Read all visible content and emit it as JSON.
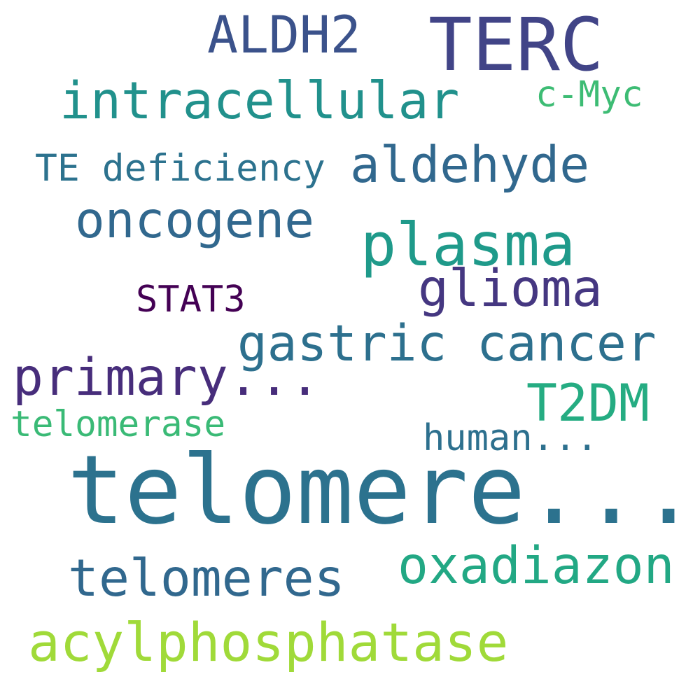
{
  "background_color": "#ffffff",
  "words": [
    {
      "id": "terc",
      "text": "TERC",
      "color": "#414487"
    },
    {
      "id": "aldh2",
      "text": "ALDH2",
      "color": "#3b528b"
    },
    {
      "id": "intracellular",
      "text": "intracellular",
      "color": "#21918c"
    },
    {
      "id": "c-myc",
      "text": "c-Myc",
      "color": "#3dbc74"
    },
    {
      "id": "te-deficiency",
      "text": "TE deficiency",
      "color": "#2c728e"
    },
    {
      "id": "aldehyde",
      "text": "aldehyde",
      "color": "#31688e"
    },
    {
      "id": "oncogene",
      "text": "oncogene",
      "color": "#31688e"
    },
    {
      "id": "plasma",
      "text": "plasma",
      "color": "#1f9a8a"
    },
    {
      "id": "glioma",
      "text": "glioma",
      "color": "#453781"
    },
    {
      "id": "stat3",
      "text": "STAT3",
      "color": "#440154"
    },
    {
      "id": "gastric-cancer",
      "text": "gastric cancer",
      "color": "#2d708e"
    },
    {
      "id": "primary",
      "text": "primary...",
      "color": "#472d7b"
    },
    {
      "id": "t2dm",
      "text": "T2DM",
      "color": "#25ac82"
    },
    {
      "id": "telomerase",
      "text": "telomerase",
      "color": "#3aba76"
    },
    {
      "id": "human",
      "text": "human...",
      "color": "#2d708e"
    },
    {
      "id": "telomere",
      "text": "telomere...",
      "color": "#2c728e"
    },
    {
      "id": "telomeres",
      "text": "telomeres",
      "color": "#31688e"
    },
    {
      "id": "oxadiazon",
      "text": "oxadiazon",
      "color": "#22a884"
    },
    {
      "id": "acylphosphatase",
      "text": "acylphosphatase",
      "color": "#a0da39"
    }
  ]
}
